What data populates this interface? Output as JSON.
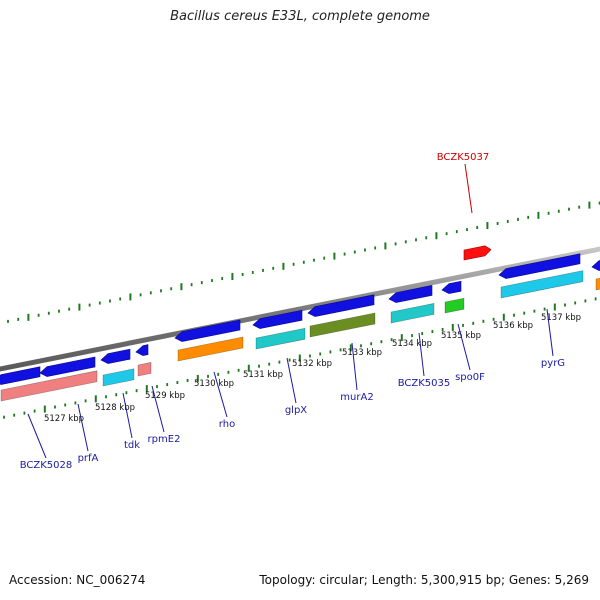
{
  "title": "Bacillus cereus E33L, complete genome",
  "footer": {
    "accession": "Accession: NC_006274",
    "summary": "Topology: circular; Length: 5,300,915 bp; Genes: 5,269"
  },
  "colors": {
    "backbone": "#8a8a8a",
    "tick": "#1f7a1f",
    "gene_blue": "#1010e0",
    "gene_label": "#1a1aa0",
    "highlight_label": "#cc0000",
    "highlight_gene": "#ff1010"
  },
  "scale_labels": [
    "5127 kbp",
    "5128 kbp",
    "5129 kbp",
    "5130 kbp",
    "5131 kbp",
    "5132 kbp",
    "5133 kbp",
    "5134 kbp",
    "5135 kbp",
    "5136 kbp",
    "5137 kbp"
  ],
  "gene_labels": [
    {
      "text": "BCZK5028",
      "color": "blue"
    },
    {
      "text": "prfA",
      "color": "blue"
    },
    {
      "text": "tdk",
      "color": "blue"
    },
    {
      "text": "rpmE2",
      "color": "blue"
    },
    {
      "text": "rho",
      "color": "blue"
    },
    {
      "text": "glpX",
      "color": "blue"
    },
    {
      "text": "murA2",
      "color": "blue"
    },
    {
      "text": "BCZK5035",
      "color": "blue"
    },
    {
      "text": "spo0F",
      "color": "blue"
    },
    {
      "text": "pyrG",
      "color": "blue"
    },
    {
      "text": "BCZK5037",
      "color": "red"
    }
  ],
  "cog_colors": [
    "#f08080",
    "#1ec8e8",
    "#f08080",
    "#ff8c00",
    "#20c8c8",
    "#6b8e23",
    "#20c8c8",
    "#22cc22",
    "#1ec8e8",
    "#ff8c00"
  ]
}
